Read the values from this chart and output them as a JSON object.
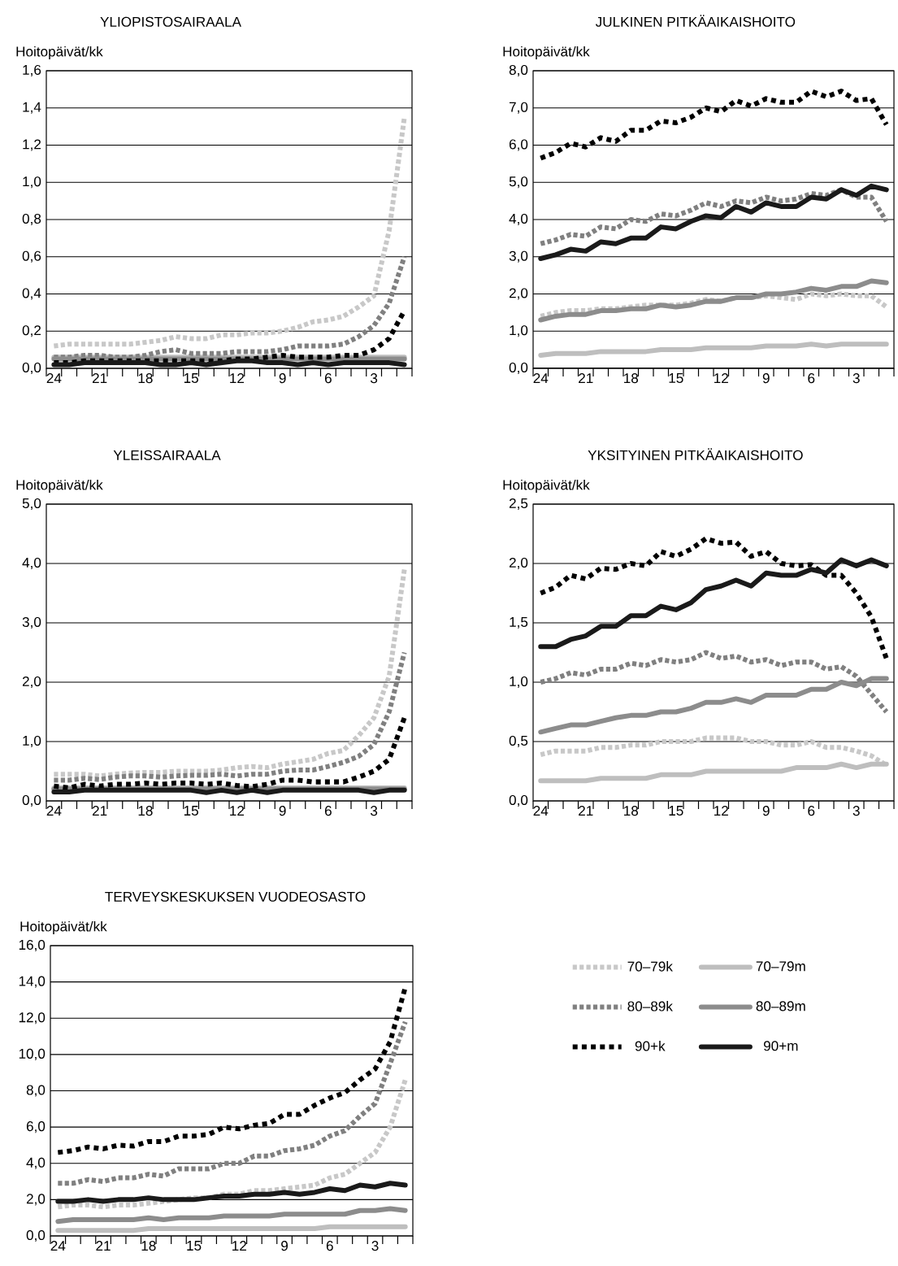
{
  "chart_data": [
    {
      "type": "line",
      "title": "YLIOPISTOSAIRAALA",
      "ylabel": "Hoitopäivät/kk",
      "grid": "y",
      "categories": [
        "24",
        null,
        null,
        "21",
        null,
        null,
        "18",
        null,
        null,
        "15",
        null,
        null,
        "12",
        null,
        null,
        "9",
        null,
        null,
        "6",
        null,
        null,
        "3",
        null,
        null
      ],
      "ylim": [
        0,
        1.6
      ],
      "yticks": [
        {
          "value": 0,
          "label": "0,0"
        },
        {
          "value": 0.2,
          "label": "0,2"
        },
        {
          "value": 0.4,
          "label": "0,4"
        },
        {
          "value": 0.6,
          "label": "0,6"
        },
        {
          "value": 0.8,
          "label": "0,8"
        },
        {
          "value": 1.0,
          "label": "1,0"
        },
        {
          "value": 1.2,
          "label": "1,2"
        },
        {
          "value": 1.4,
          "label": "1,4"
        },
        {
          "value": 1.6,
          "label": "1,6"
        }
      ],
      "series": [
        {
          "color": "#c8c8c8",
          "line_style": "dotted",
          "values": [
            0.12,
            0.13,
            0.13,
            0.13,
            0.13,
            0.13,
            0.14,
            0.15,
            0.17,
            0.16,
            0.16,
            0.18,
            0.18,
            0.19,
            0.19,
            0.2,
            0.22,
            0.25,
            0.26,
            0.28,
            0.33,
            0.39,
            0.74,
            1.35
          ]
        },
        {
          "color": "#bebebe",
          "line_style": "solid",
          "values": [
            0.06,
            0.06,
            0.06,
            0.06,
            0.06,
            0.06,
            0.06,
            0.06,
            0.06,
            0.06,
            0.06,
            0.06,
            0.06,
            0.06,
            0.06,
            0.06,
            0.06,
            0.06,
            0.06,
            0.06,
            0.06,
            0.06,
            0.06,
            0.06
          ]
        },
        {
          "color": "#808080",
          "line_style": "dotted",
          "values": [
            0.06,
            0.06,
            0.07,
            0.07,
            0.06,
            0.06,
            0.07,
            0.09,
            0.1,
            0.08,
            0.08,
            0.08,
            0.09,
            0.09,
            0.09,
            0.1,
            0.12,
            0.12,
            0.12,
            0.13,
            0.17,
            0.23,
            0.35,
            0.6
          ]
        },
        {
          "color": "#8c8c8c",
          "line_style": "solid",
          "values": [
            0.05,
            0.05,
            0.05,
            0.05,
            0.05,
            0.05,
            0.05,
            0.05,
            0.05,
            0.05,
            0.05,
            0.05,
            0.05,
            0.05,
            0.05,
            0.05,
            0.05,
            0.05,
            0.05,
            0.05,
            0.05,
            0.05,
            0.05,
            0.05
          ]
        },
        {
          "color": "#000000",
          "line_style": "dashed",
          "values": [
            0.03,
            0.03,
            0.04,
            0.04,
            0.04,
            0.04,
            0.04,
            0.04,
            0.04,
            0.04,
            0.04,
            0.04,
            0.05,
            0.05,
            0.06,
            0.07,
            0.06,
            0.06,
            0.06,
            0.07,
            0.07,
            0.1,
            0.16,
            0.31
          ]
        },
        {
          "color": "#1a1a1a",
          "line_style": "solid",
          "values": [
            0.02,
            0.02,
            0.03,
            0.03,
            0.03,
            0.03,
            0.03,
            0.02,
            0.02,
            0.03,
            0.02,
            0.03,
            0.04,
            0.04,
            0.03,
            0.03,
            0.02,
            0.03,
            0.02,
            0.03,
            0.03,
            0.03,
            0.03,
            0.02
          ]
        }
      ]
    },
    {
      "type": "line",
      "title": "JULKINEN PITKÄAIKAISHOITO",
      "ylabel": "Hoitopäivät/kk",
      "grid": "y",
      "categories": [
        "24",
        null,
        null,
        "21",
        null,
        null,
        "18",
        null,
        null,
        "15",
        null,
        null,
        "12",
        null,
        null,
        "9",
        null,
        null,
        "6",
        null,
        null,
        "3",
        null,
        null
      ],
      "ylim": [
        0,
        8
      ],
      "yticks": [
        {
          "value": 0,
          "label": "0,0"
        },
        {
          "value": 1,
          "label": "1,0"
        },
        {
          "value": 2,
          "label": "2,0"
        },
        {
          "value": 3,
          "label": "3,0"
        },
        {
          "value": 4,
          "label": "4,0"
        },
        {
          "value": 5,
          "label": "5,0"
        },
        {
          "value": 6,
          "label": "6,0"
        },
        {
          "value": 7,
          "label": "7,0"
        },
        {
          "value": 8,
          "label": "8,0"
        }
      ],
      "series": [
        {
          "color": "#c8c8c8",
          "line_style": "dotted",
          "values": [
            1.4,
            1.5,
            1.55,
            1.55,
            1.6,
            1.6,
            1.65,
            1.7,
            1.7,
            1.7,
            1.75,
            1.85,
            1.8,
            1.9,
            1.9,
            1.95,
            1.9,
            1.85,
            2.0,
            1.95,
            2.0,
            1.95,
            1.95,
            1.65
          ]
        },
        {
          "color": "#bebebe",
          "line_style": "solid",
          "values": [
            0.35,
            0.4,
            0.4,
            0.4,
            0.45,
            0.45,
            0.45,
            0.45,
            0.5,
            0.5,
            0.5,
            0.55,
            0.55,
            0.55,
            0.55,
            0.6,
            0.6,
            0.6,
            0.65,
            0.6,
            0.65,
            0.65,
            0.65,
            0.65
          ]
        },
        {
          "color": "#808080",
          "line_style": "dotted",
          "values": [
            3.35,
            3.45,
            3.6,
            3.55,
            3.8,
            3.75,
            4.0,
            3.95,
            4.15,
            4.1,
            4.25,
            4.45,
            4.35,
            4.5,
            4.45,
            4.6,
            4.5,
            4.55,
            4.7,
            4.65,
            4.8,
            4.6,
            4.6,
            3.95
          ]
        },
        {
          "color": "#8c8c8c",
          "line_style": "solid",
          "values": [
            1.3,
            1.4,
            1.45,
            1.45,
            1.55,
            1.55,
            1.6,
            1.6,
            1.7,
            1.65,
            1.7,
            1.8,
            1.8,
            1.9,
            1.9,
            2.0,
            2.0,
            2.05,
            2.15,
            2.1,
            2.2,
            2.2,
            2.35,
            2.3
          ]
        },
        {
          "color": "#000000",
          "line_style": "dashed",
          "values": [
            5.65,
            5.8,
            6.05,
            5.95,
            6.2,
            6.1,
            6.4,
            6.4,
            6.65,
            6.6,
            6.75,
            7.0,
            6.9,
            7.2,
            7.05,
            7.25,
            7.15,
            7.15,
            7.45,
            7.3,
            7.45,
            7.2,
            7.25,
            6.55
          ]
        },
        {
          "color": "#1a1a1a",
          "line_style": "solid",
          "values": [
            2.95,
            3.05,
            3.2,
            3.15,
            3.4,
            3.35,
            3.5,
            3.5,
            3.8,
            3.75,
            3.95,
            4.1,
            4.05,
            4.35,
            4.2,
            4.45,
            4.35,
            4.35,
            4.6,
            4.55,
            4.8,
            4.65,
            4.9,
            4.8
          ]
        }
      ]
    },
    {
      "type": "line",
      "title": "YLEISSAIRAALA",
      "ylabel": "Hoitopäivät/kk",
      "grid": "y",
      "categories": [
        "24",
        null,
        null,
        "21",
        null,
        null,
        "18",
        null,
        null,
        "15",
        null,
        null,
        "12",
        null,
        null,
        "9",
        null,
        null,
        "6",
        null,
        null,
        "3",
        null,
        null
      ],
      "ylim": [
        0,
        5
      ],
      "yticks": [
        {
          "value": 0,
          "label": "0,0"
        },
        {
          "value": 1,
          "label": "1,0"
        },
        {
          "value": 2,
          "label": "2,0"
        },
        {
          "value": 3,
          "label": "3,0"
        },
        {
          "value": 4,
          "label": "4,0"
        },
        {
          "value": 5,
          "label": "5,0"
        }
      ],
      "series": [
        {
          "color": "#c8c8c8",
          "line_style": "dotted",
          "values": [
            0.45,
            0.45,
            0.45,
            0.42,
            0.45,
            0.47,
            0.48,
            0.48,
            0.5,
            0.5,
            0.5,
            0.52,
            0.56,
            0.58,
            0.56,
            0.62,
            0.66,
            0.7,
            0.8,
            0.85,
            1.1,
            1.4,
            2.1,
            3.9
          ]
        },
        {
          "color": "#bebebe",
          "line_style": "solid",
          "values": [
            0.22,
            0.22,
            0.22,
            0.22,
            0.22,
            0.22,
            0.22,
            0.22,
            0.22,
            0.22,
            0.22,
            0.22,
            0.22,
            0.22,
            0.22,
            0.22,
            0.22,
            0.22,
            0.22,
            0.22,
            0.22,
            0.22,
            0.22,
            0.22
          ]
        },
        {
          "color": "#808080",
          "line_style": "dotted",
          "values": [
            0.35,
            0.35,
            0.38,
            0.36,
            0.4,
            0.42,
            0.42,
            0.4,
            0.42,
            0.43,
            0.43,
            0.45,
            0.42,
            0.45,
            0.45,
            0.5,
            0.52,
            0.52,
            0.58,
            0.65,
            0.75,
            0.95,
            1.5,
            2.5
          ]
        },
        {
          "color": "#8c8c8c",
          "line_style": "solid",
          "values": [
            0.2,
            0.2,
            0.2,
            0.2,
            0.2,
            0.2,
            0.2,
            0.2,
            0.2,
            0.2,
            0.2,
            0.2,
            0.2,
            0.2,
            0.2,
            0.2,
            0.2,
            0.2,
            0.2,
            0.2,
            0.2,
            0.2,
            0.2,
            0.2
          ]
        },
        {
          "color": "#000000",
          "line_style": "dashed",
          "values": [
            0.25,
            0.22,
            0.28,
            0.25,
            0.28,
            0.28,
            0.3,
            0.28,
            0.3,
            0.3,
            0.28,
            0.3,
            0.26,
            0.24,
            0.28,
            0.35,
            0.35,
            0.32,
            0.32,
            0.32,
            0.4,
            0.5,
            0.7,
            1.4
          ]
        },
        {
          "color": "#1a1a1a",
          "line_style": "solid",
          "values": [
            0.15,
            0.15,
            0.18,
            0.18,
            0.18,
            0.18,
            0.18,
            0.18,
            0.18,
            0.18,
            0.14,
            0.18,
            0.14,
            0.18,
            0.14,
            0.18,
            0.18,
            0.18,
            0.18,
            0.18,
            0.18,
            0.14,
            0.18,
            0.18
          ]
        }
      ]
    },
    {
      "type": "line",
      "title": "YKSITYINEN PITKÄAIKAISHOITO",
      "ylabel": "Hoitopäivät/kk",
      "grid": "y",
      "categories": [
        "24",
        null,
        null,
        "21",
        null,
        null,
        "18",
        null,
        null,
        "15",
        null,
        null,
        "12",
        null,
        null,
        "9",
        null,
        null,
        "6",
        null,
        null,
        "3",
        null,
        null
      ],
      "ylim": [
        0,
        2.5
      ],
      "yticks": [
        {
          "value": 0,
          "label": "0,0"
        },
        {
          "value": 0.5,
          "label": "0,5"
        },
        {
          "value": 1.0,
          "label": "1,0"
        },
        {
          "value": 1.5,
          "label": "1,5"
        },
        {
          "value": 2.0,
          "label": "2,0"
        },
        {
          "value": 2.5,
          "label": "2,5"
        }
      ],
      "series": [
        {
          "color": "#c8c8c8",
          "line_style": "dotted",
          "values": [
            0.39,
            0.42,
            0.42,
            0.42,
            0.45,
            0.45,
            0.47,
            0.47,
            0.5,
            0.5,
            0.5,
            0.53,
            0.53,
            0.53,
            0.5,
            0.5,
            0.47,
            0.47,
            0.5,
            0.45,
            0.45,
            0.42,
            0.38,
            0.3
          ]
        },
        {
          "color": "#bebebe",
          "line_style": "solid",
          "values": [
            0.17,
            0.17,
            0.17,
            0.17,
            0.19,
            0.19,
            0.19,
            0.19,
            0.22,
            0.22,
            0.22,
            0.25,
            0.25,
            0.25,
            0.25,
            0.25,
            0.25,
            0.28,
            0.28,
            0.28,
            0.31,
            0.28,
            0.31,
            0.31
          ]
        },
        {
          "color": "#808080",
          "line_style": "dotted",
          "values": [
            1.0,
            1.03,
            1.08,
            1.06,
            1.11,
            1.11,
            1.16,
            1.14,
            1.19,
            1.17,
            1.19,
            1.25,
            1.2,
            1.22,
            1.17,
            1.19,
            1.14,
            1.17,
            1.17,
            1.11,
            1.13,
            1.05,
            0.9,
            0.75
          ]
        },
        {
          "color": "#8c8c8c",
          "line_style": "solid",
          "values": [
            0.58,
            0.61,
            0.64,
            0.64,
            0.67,
            0.7,
            0.72,
            0.72,
            0.75,
            0.75,
            0.78,
            0.83,
            0.83,
            0.86,
            0.83,
            0.89,
            0.89,
            0.89,
            0.94,
            0.94,
            1.0,
            0.97,
            1.03,
            1.03
          ]
        },
        {
          "color": "#000000",
          "line_style": "dashed",
          "values": [
            1.75,
            1.8,
            1.9,
            1.87,
            1.96,
            1.95,
            2.0,
            1.98,
            2.1,
            2.06,
            2.12,
            2.21,
            2.17,
            2.18,
            2.06,
            2.1,
            2.0,
            1.98,
            1.99,
            1.9,
            1.9,
            1.75,
            1.55,
            1.2
          ]
        },
        {
          "color": "#1a1a1a",
          "line_style": "solid",
          "values": [
            1.3,
            1.3,
            1.36,
            1.39,
            1.47,
            1.47,
            1.56,
            1.56,
            1.64,
            1.61,
            1.67,
            1.78,
            1.81,
            1.86,
            1.81,
            1.92,
            1.9,
            1.9,
            1.95,
            1.92,
            2.03,
            1.98,
            2.03,
            1.98
          ]
        }
      ]
    },
    {
      "type": "line",
      "title": "TERVEYSKESKUKSEN VUODEOSASTO",
      "ylabel": "Hoitopäivät/kk",
      "grid": "y",
      "legend": "right",
      "categories": [
        "24",
        null,
        null,
        "21",
        null,
        null,
        "18",
        null,
        null,
        "15",
        null,
        null,
        "12",
        null,
        null,
        "9",
        null,
        null,
        "6",
        null,
        null,
        "3",
        null,
        null
      ],
      "ylim": [
        0,
        16
      ],
      "yticks": [
        {
          "value": 0,
          "label": "0,0"
        },
        {
          "value": 2,
          "label": "2,0"
        },
        {
          "value": 4,
          "label": "4,0"
        },
        {
          "value": 6,
          "label": "6,0"
        },
        {
          "value": 8,
          "label": "8,0"
        },
        {
          "value": 10,
          "label": "10,0"
        },
        {
          "value": 12,
          "label": "12,0"
        },
        {
          "value": 14,
          "label": "14,0"
        },
        {
          "value": 16,
          "label": "16,0"
        }
      ],
      "series": [
        {
          "name": "70–79k",
          "color": "#c8c8c8",
          "line_style": "dotted",
          "values": [
            1.6,
            1.7,
            1.7,
            1.6,
            1.7,
            1.7,
            1.8,
            1.9,
            2.0,
            2.1,
            2.1,
            2.3,
            2.3,
            2.5,
            2.5,
            2.6,
            2.7,
            2.8,
            3.2,
            3.4,
            4.0,
            4.6,
            6.0,
            8.6
          ]
        },
        {
          "name": "70–79m",
          "color": "#bebebe",
          "line_style": "solid",
          "values": [
            0.3,
            0.3,
            0.3,
            0.3,
            0.3,
            0.3,
            0.4,
            0.4,
            0.4,
            0.4,
            0.4,
            0.4,
            0.4,
            0.4,
            0.4,
            0.4,
            0.4,
            0.4,
            0.5,
            0.5,
            0.5,
            0.5,
            0.5,
            0.5
          ]
        },
        {
          "name": "80–89k",
          "color": "#808080",
          "line_style": "dotted",
          "values": [
            2.9,
            2.9,
            3.1,
            3.0,
            3.2,
            3.2,
            3.4,
            3.3,
            3.7,
            3.7,
            3.7,
            4.0,
            4.0,
            4.4,
            4.4,
            4.7,
            4.8,
            5.0,
            5.5,
            5.8,
            6.6,
            7.3,
            9.5,
            11.8
          ]
        },
        {
          "name": "80–89m",
          "color": "#8c8c8c",
          "line_style": "solid",
          "values": [
            0.8,
            0.9,
            0.9,
            0.9,
            0.9,
            0.9,
            1.0,
            0.9,
            1.0,
            1.0,
            1.0,
            1.1,
            1.1,
            1.1,
            1.1,
            1.2,
            1.2,
            1.2,
            1.2,
            1.2,
            1.4,
            1.4,
            1.5,
            1.4
          ]
        },
        {
          "name": "90+k",
          "color": "#000000",
          "line_style": "dashed",
          "values": [
            4.6,
            4.7,
            4.9,
            4.8,
            5.0,
            4.95,
            5.2,
            5.2,
            5.5,
            5.5,
            5.6,
            6.0,
            5.9,
            6.1,
            6.2,
            6.7,
            6.7,
            7.2,
            7.6,
            7.9,
            8.6,
            9.2,
            10.7,
            13.7
          ]
        },
        {
          "name": "90+m",
          "color": "#1a1a1a",
          "line_style": "solid",
          "values": [
            1.9,
            1.9,
            2.0,
            1.9,
            2.0,
            2.0,
            2.1,
            2.0,
            2.0,
            2.0,
            2.1,
            2.2,
            2.2,
            2.3,
            2.3,
            2.4,
            2.3,
            2.4,
            2.6,
            2.5,
            2.8,
            2.7,
            2.9,
            2.8
          ]
        }
      ]
    }
  ]
}
